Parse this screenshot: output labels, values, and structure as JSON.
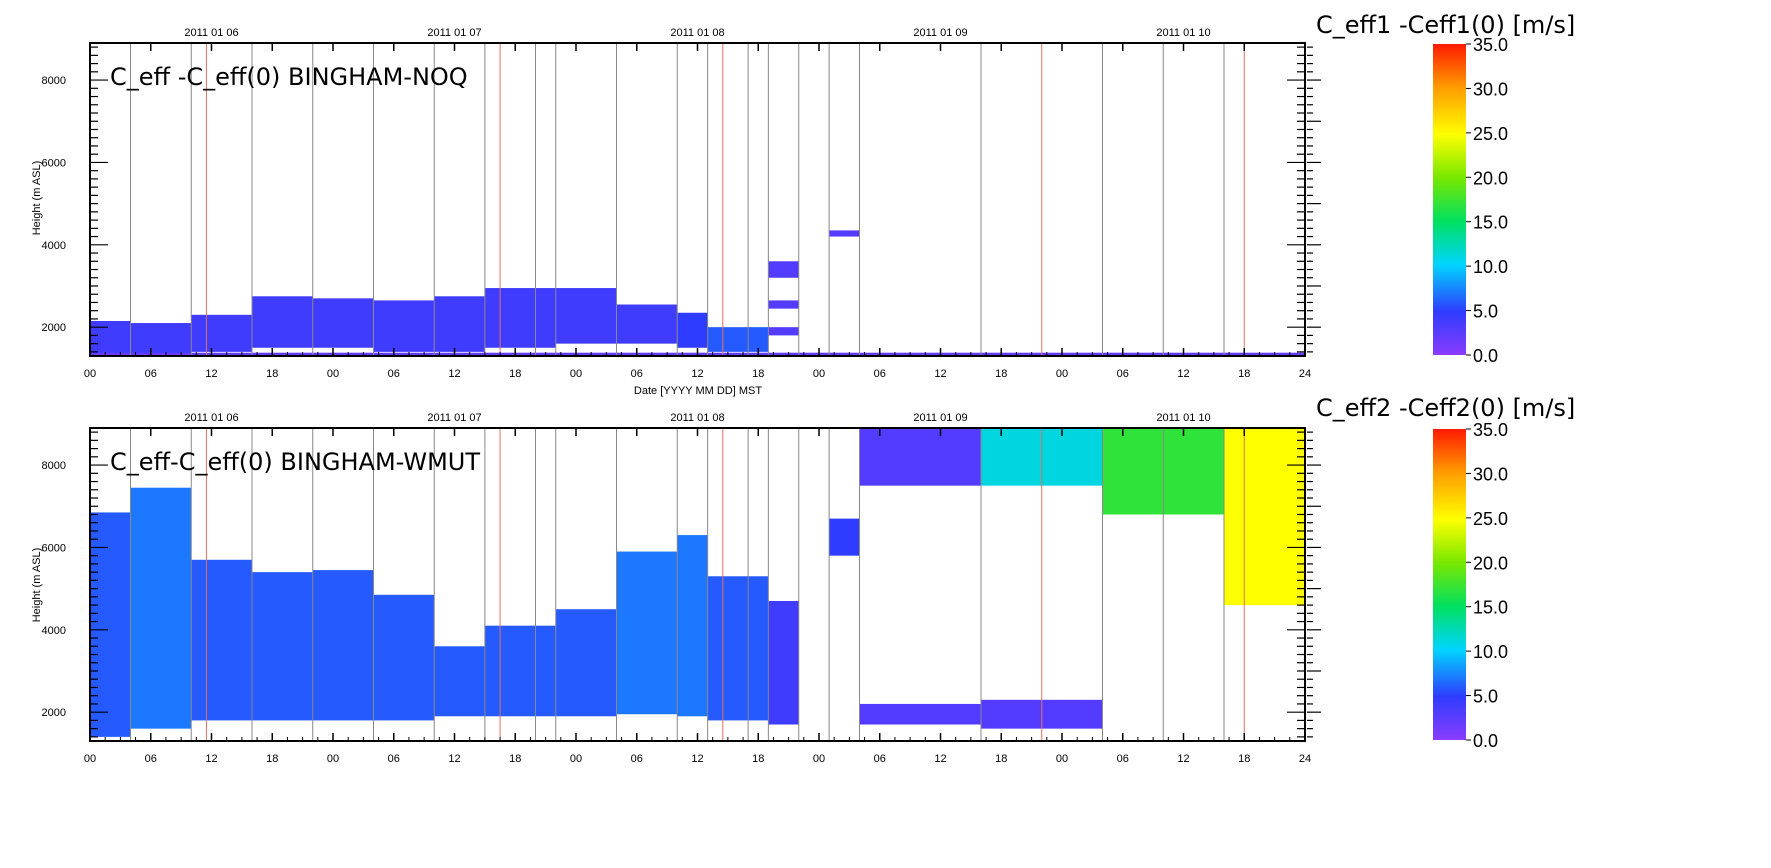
{
  "chart_data": [
    {
      "type": "heatmap",
      "title": "C_eff -C_eff(0) BINGHAM-NOQ",
      "xlabel": "Date [YYYY MM DD] MST",
      "ylabel": "Height (m ASL)",
      "x_range_hours": [
        0,
        120
      ],
      "ylim": [
        1300,
        8900
      ],
      "yticks": [
        2000,
        4000,
        6000,
        8000
      ],
      "xtick_labels": [
        "00",
        "06",
        "12",
        "18",
        "00",
        "06",
        "12",
        "18",
        "00",
        "06",
        "12",
        "18",
        "00",
        "06",
        "12",
        "18",
        "00",
        "06",
        "12",
        "18",
        "24"
      ],
      "date_labels": [
        "2011 01 06",
        "2011 01 07",
        "2011 01 08",
        "2011 01 09",
        "2011 01 10"
      ],
      "colorbar": {
        "title": "C_eff1 -Ceff1(0) [m/s]",
        "range": [
          0,
          35
        ],
        "ticks": [
          "0.0",
          "5.0",
          "10.0",
          "15.0",
          "20.0",
          "25.0",
          "30.0",
          "35.0"
        ]
      },
      "segments_hours_m_value": [
        [
          0,
          4,
          1300,
          2150,
          4
        ],
        [
          4,
          10,
          1300,
          2100,
          4
        ],
        [
          10,
          16,
          1400,
          2300,
          4
        ],
        [
          16,
          22,
          1500,
          2750,
          4
        ],
        [
          22,
          28,
          1500,
          2700,
          4
        ],
        [
          28,
          34,
          1400,
          2650,
          4
        ],
        [
          34,
          39,
          1400,
          2750,
          4
        ],
        [
          39,
          46,
          1500,
          2950,
          4
        ],
        [
          46,
          52,
          1600,
          2950,
          4
        ],
        [
          52,
          58,
          1600,
          2550,
          4
        ],
        [
          58,
          61,
          1500,
          2350,
          5
        ],
        [
          61,
          67,
          1400,
          2000,
          6
        ],
        [
          67,
          70,
          1800,
          2000,
          3
        ],
        [
          67,
          70,
          2450,
          2650,
          3
        ],
        [
          67,
          70,
          3200,
          3600,
          3
        ],
        [
          73,
          76,
          4200,
          4350,
          3
        ],
        [
          0,
          120,
          1300,
          1380,
          2
        ]
      ]
    },
    {
      "type": "heatmap",
      "title": "C_eff-C_eff(0) BINGHAM-WMUT",
      "xlabel": "",
      "ylabel": "Height (m ASL)",
      "x_range_hours": [
        0,
        120
      ],
      "ylim": [
        1300,
        8900
      ],
      "yticks": [
        2000,
        4000,
        6000,
        8000
      ],
      "xtick_labels": [
        "00",
        "06",
        "12",
        "18",
        "00",
        "06",
        "12",
        "18",
        "00",
        "06",
        "12",
        "18",
        "00",
        "06",
        "12",
        "18",
        "00",
        "06",
        "12",
        "18",
        "24"
      ],
      "date_labels": [
        "2011 01 06",
        "2011 01 07",
        "2011 01 08",
        "2011 01 09",
        "2011 01 10"
      ],
      "colorbar": {
        "title": "C_eff2 -Ceff2(0) [m/s]",
        "range": [
          0,
          35
        ],
        "ticks": [
          "0.0",
          "5.0",
          "10.0",
          "15.0",
          "20.0",
          "25.0",
          "30.0",
          "35.0"
        ]
      },
      "segments_hours_m_value": [
        [
          0,
          4,
          1400,
          6850,
          6
        ],
        [
          4,
          10,
          1600,
          7450,
          7
        ],
        [
          10,
          16,
          1800,
          5700,
          6
        ],
        [
          16,
          22,
          1800,
          5400,
          6
        ],
        [
          22,
          28,
          1800,
          5450,
          6
        ],
        [
          28,
          34,
          1800,
          4850,
          6
        ],
        [
          34,
          39,
          1900,
          3600,
          6
        ],
        [
          39,
          46,
          1900,
          4100,
          6
        ],
        [
          46,
          52,
          1900,
          4500,
          6
        ],
        [
          52,
          58,
          1950,
          5900,
          7
        ],
        [
          58,
          61,
          1900,
          6300,
          7
        ],
        [
          61,
          67,
          1800,
          5300,
          6
        ],
        [
          67,
          70,
          1700,
          4700,
          4
        ],
        [
          73,
          76,
          5800,
          6700,
          5
        ],
        [
          76,
          88,
          7500,
          8900,
          3
        ],
        [
          76,
          88,
          1700,
          2200,
          3
        ],
        [
          88,
          100,
          1600,
          2300,
          3
        ],
        [
          88,
          100,
          7500,
          8900,
          11
        ],
        [
          100,
          112,
          6800,
          8900,
          17
        ],
        [
          112,
          120,
          4600,
          8900,
          25
        ]
      ]
    }
  ]
}
